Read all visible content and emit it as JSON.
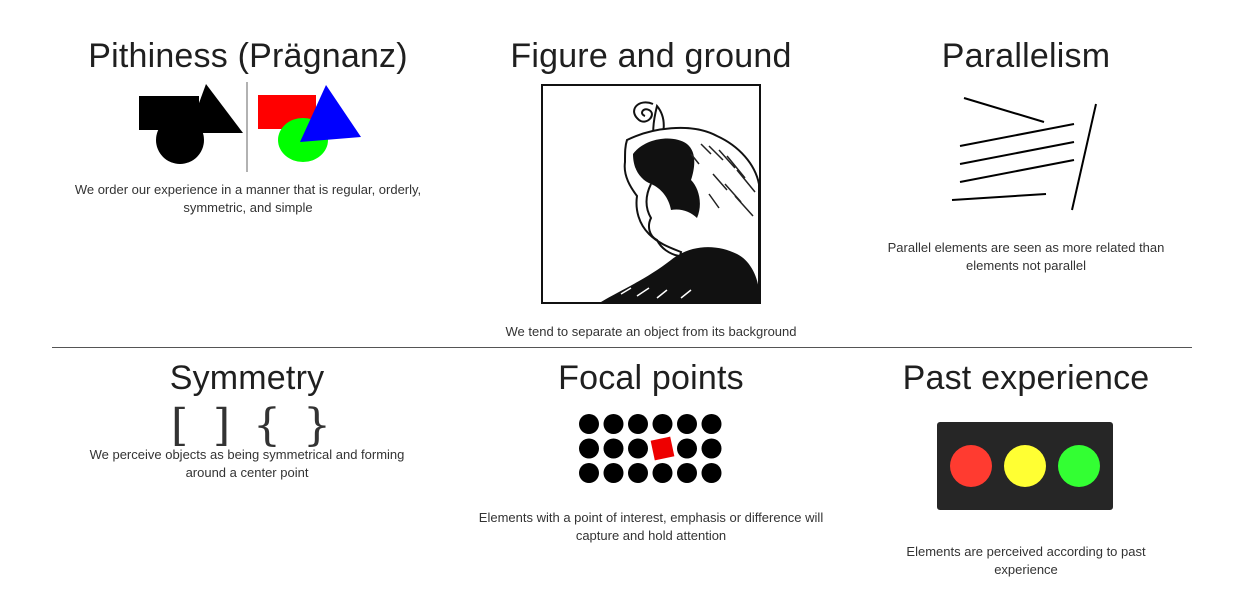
{
  "panels": {
    "pithiness": {
      "title": "Pithiness (Prägnanz)",
      "caption_line1": "We order our experience in a manner that is regular, orderly,",
      "caption_line2": "symmetric, and simple"
    },
    "figure_ground": {
      "title": "Figure and ground",
      "caption": "We tend to separate an object from its background"
    },
    "parallelism": {
      "title": "Parallelism",
      "caption_line1": "Parallel elements are seen as more related than",
      "caption_line2": "elements not parallel"
    },
    "symmetry": {
      "title": "Symmetry",
      "brackets": [
        "[",
        "]",
        "{",
        "}"
      ],
      "caption_line1": "We perceive objects as being symmetrical and forming",
      "caption_line2": "around a center point"
    },
    "focal_points": {
      "title": "Focal points",
      "caption_line1": "Elements with a point of interest, emphasis or difference will",
      "caption_line2": "capture and hold attention",
      "dot_grid": {
        "rows": 3,
        "cols": 6,
        "highlight_row": 1,
        "highlight_col": 3
      }
    },
    "past_experience": {
      "title": "Past experience",
      "caption_line1": "Elements are perceived according to past",
      "caption_line2": "experience",
      "traffic_light": [
        "red",
        "yellow",
        "green"
      ]
    }
  },
  "colors": {
    "red": "#ff0000",
    "blue": "#0000ff",
    "green": "#00ff00",
    "light_red": "#ff3b30",
    "light_yellow": "#ffff33",
    "light_green": "#33ff33",
    "traffic_body": "#262626",
    "dot": "#000000",
    "focal_square": "#ee0000"
  }
}
